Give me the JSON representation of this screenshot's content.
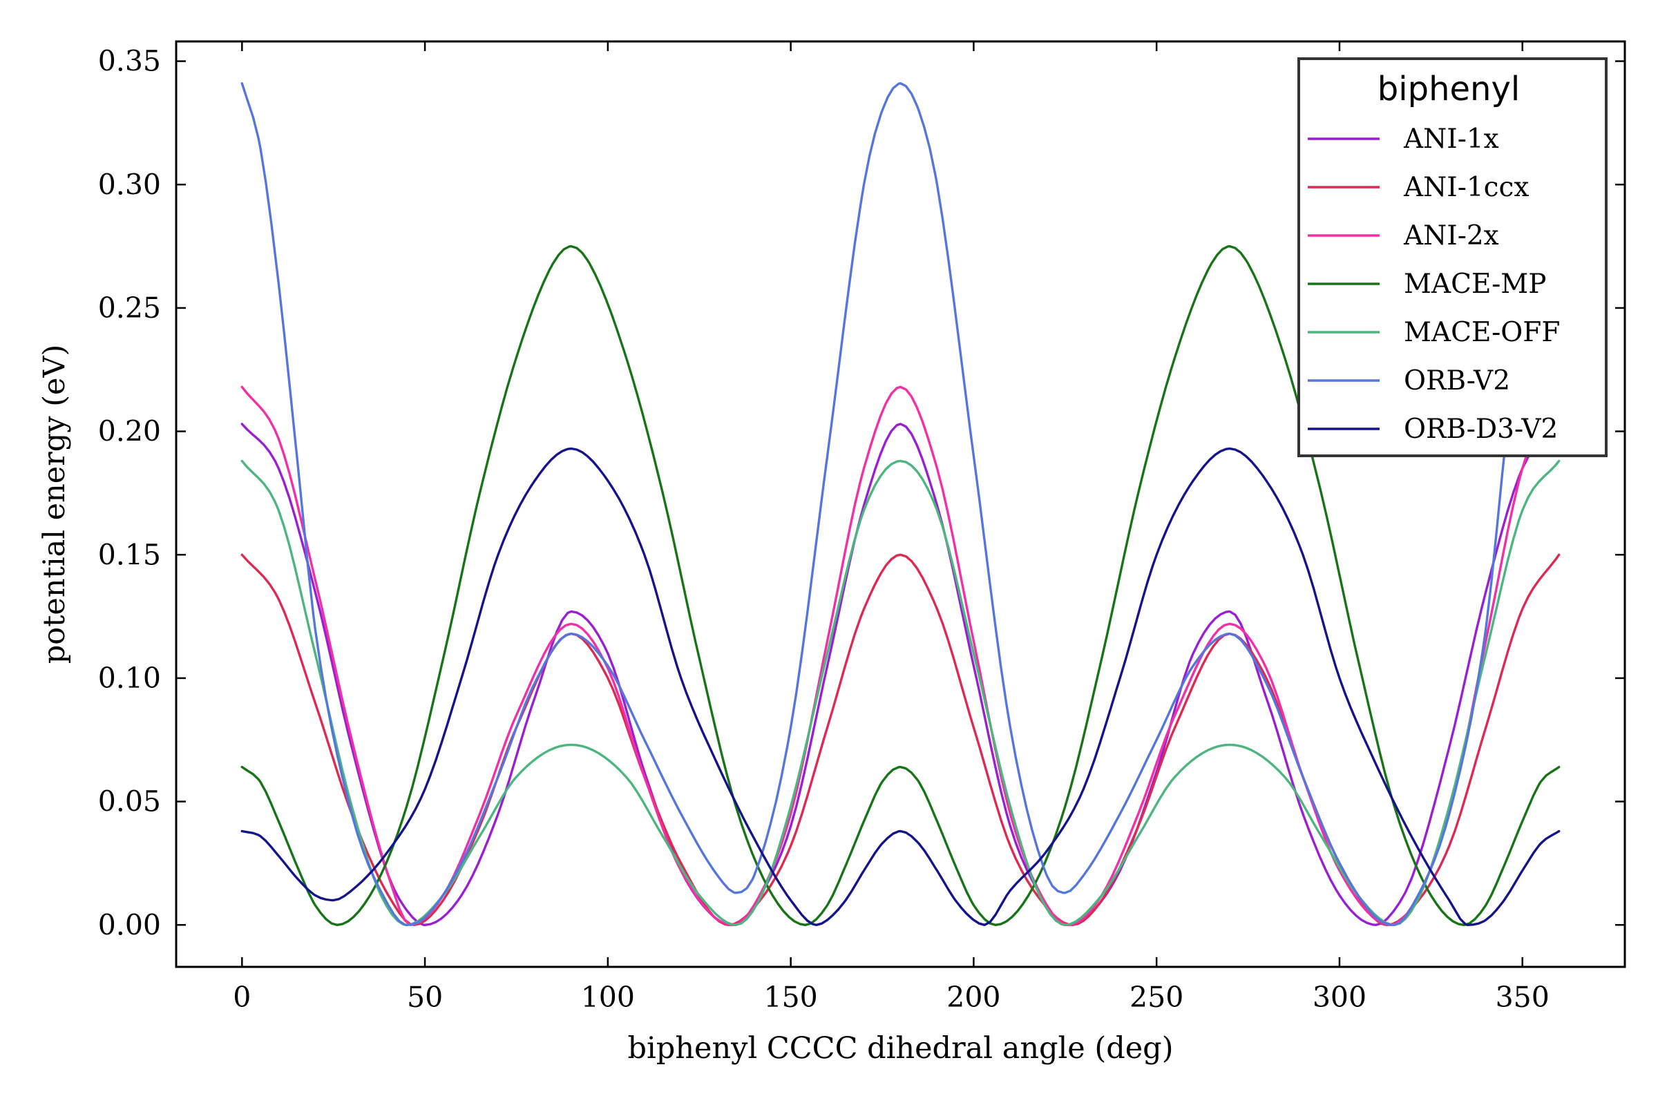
{
  "chart_data": {
    "type": "line",
    "xlabel": "biphenyl CCCC dihedral angle (deg)",
    "ylabel": "potential energy (eV)",
    "xlim": [
      -18,
      378
    ],
    "ylim": [
      -0.017,
      0.358
    ],
    "xticks": [
      0,
      50,
      100,
      150,
      200,
      250,
      300,
      350
    ],
    "xtick_labels": [
      "0",
      "50",
      "100",
      "150",
      "200",
      "250",
      "300",
      "350"
    ],
    "yticks": [
      0.0,
      0.05,
      0.1,
      0.15,
      0.2,
      0.25,
      0.3,
      0.35
    ],
    "ytick_labels": [
      "0.00",
      "0.05",
      "0.10",
      "0.15",
      "0.20",
      "0.25",
      "0.30",
      "0.35"
    ],
    "grid": false,
    "legend": {
      "title": "biphenyl",
      "placement": "top-right"
    },
    "x_range": [
      0,
      360
    ],
    "series": [
      {
        "name": "ANI-1x",
        "color": "#9a1fd3",
        "x": [
          0,
          10,
          20,
          30,
          40,
          45,
          50,
          60,
          70,
          80,
          90,
          100,
          110,
          120,
          130,
          135,
          140,
          150,
          160,
          170,
          180,
          190,
          200,
          210,
          220,
          225,
          230,
          240,
          250,
          260,
          270,
          280,
          290,
          300,
          310,
          315,
          320,
          330,
          340,
          350,
          360
        ],
        "y": [
          0.203,
          0.185,
          0.135,
          0.072,
          0.02,
          0.006,
          0.0,
          0.012,
          0.045,
          0.092,
          0.127,
          0.11,
          0.062,
          0.022,
          0.002,
          0.0,
          0.008,
          0.04,
          0.105,
          0.17,
          0.203,
          0.17,
          0.105,
          0.04,
          0.008,
          0.0,
          0.002,
          0.022,
          0.062,
          0.11,
          0.127,
          0.092,
          0.045,
          0.012,
          0.0,
          0.006,
          0.02,
          0.072,
          0.135,
          0.185,
          0.203
        ]
      },
      {
        "name": "ANI-1ccx",
        "color": "#dc2a52",
        "x": [
          0,
          10,
          20,
          30,
          40,
          47,
          55,
          65,
          75,
          90,
          100,
          110,
          120,
          133,
          140,
          150,
          160,
          170,
          180,
          190,
          200,
          210,
          220,
          227,
          235,
          245,
          255,
          270,
          280,
          290,
          300,
          313,
          320,
          330,
          340,
          350,
          360
        ],
        "y": [
          0.15,
          0.132,
          0.09,
          0.045,
          0.012,
          0.0,
          0.01,
          0.04,
          0.08,
          0.118,
          0.1,
          0.06,
          0.025,
          0.0,
          0.007,
          0.032,
          0.08,
          0.128,
          0.15,
          0.128,
          0.08,
          0.032,
          0.007,
          0.0,
          0.01,
          0.04,
          0.08,
          0.118,
          0.1,
          0.06,
          0.025,
          0.0,
          0.007,
          0.032,
          0.08,
          0.128,
          0.15
        ]
      },
      {
        "name": "ANI-2x",
        "color": "#f12fa6",
        "x": [
          0,
          10,
          20,
          30,
          40,
          46,
          55,
          65,
          75,
          90,
          100,
          110,
          120,
          134,
          140,
          150,
          160,
          170,
          180,
          190,
          200,
          210,
          220,
          226,
          235,
          245,
          255,
          270,
          280,
          290,
          300,
          314,
          320,
          330,
          340,
          350,
          360
        ],
        "y": [
          0.218,
          0.197,
          0.14,
          0.075,
          0.02,
          0.0,
          0.012,
          0.045,
          0.085,
          0.122,
          0.104,
          0.06,
          0.022,
          0.0,
          0.008,
          0.045,
          0.115,
          0.185,
          0.218,
          0.185,
          0.115,
          0.045,
          0.008,
          0.0,
          0.012,
          0.045,
          0.085,
          0.122,
          0.104,
          0.06,
          0.022,
          0.0,
          0.008,
          0.045,
          0.115,
          0.185,
          0.218
        ]
      },
      {
        "name": "MACE-MP",
        "color": "#177417",
        "x": [
          0,
          5,
          10,
          15,
          20,
          26,
          35,
          45,
          55,
          65,
          75,
          85,
          90,
          95,
          105,
          115,
          125,
          135,
          145,
          154,
          160,
          165,
          170,
          175,
          180,
          185,
          190,
          195,
          200,
          206,
          215,
          225,
          235,
          245,
          255,
          265,
          270,
          275,
          285,
          295,
          305,
          315,
          325,
          334,
          340,
          345,
          350,
          355,
          360
        ],
        "y": [
          0.064,
          0.058,
          0.042,
          0.024,
          0.008,
          0.0,
          0.012,
          0.048,
          0.108,
          0.175,
          0.23,
          0.268,
          0.275,
          0.268,
          0.23,
          0.175,
          0.108,
          0.048,
          0.012,
          0.0,
          0.008,
          0.024,
          0.042,
          0.058,
          0.064,
          0.058,
          0.042,
          0.024,
          0.008,
          0.0,
          0.012,
          0.048,
          0.108,
          0.175,
          0.23,
          0.268,
          0.275,
          0.268,
          0.23,
          0.175,
          0.108,
          0.048,
          0.012,
          0.0,
          0.008,
          0.024,
          0.042,
          0.058,
          0.064
        ]
      },
      {
        "name": "MACE-OFF",
        "color": "#4db67f",
        "x": [
          0,
          10,
          20,
          30,
          38,
          45,
          55,
          65,
          75,
          90,
          105,
          115,
          125,
          135,
          142,
          150,
          160,
          170,
          180,
          190,
          200,
          210,
          218,
          225,
          235,
          245,
          255,
          270,
          285,
          295,
          305,
          315,
          322,
          330,
          340,
          350,
          360
        ],
        "y": [
          0.188,
          0.168,
          0.11,
          0.048,
          0.012,
          0.0,
          0.012,
          0.036,
          0.06,
          0.073,
          0.06,
          0.036,
          0.012,
          0.0,
          0.012,
          0.048,
          0.11,
          0.168,
          0.188,
          0.168,
          0.11,
          0.048,
          0.012,
          0.0,
          0.012,
          0.036,
          0.06,
          0.073,
          0.06,
          0.036,
          0.012,
          0.0,
          0.012,
          0.048,
          0.11,
          0.168,
          0.188
        ]
      },
      {
        "name": "ORB-V2",
        "color": "#5577dd",
        "x": [
          0,
          5,
          10,
          15,
          20,
          30,
          40,
          45,
          50,
          60,
          70,
          80,
          90,
          100,
          110,
          120,
          130,
          135,
          140,
          150,
          160,
          170,
          175,
          180,
          185,
          190,
          200,
          210,
          220,
          225,
          230,
          240,
          250,
          260,
          270,
          280,
          290,
          300,
          310,
          315,
          320,
          330,
          340,
          345,
          350,
          355,
          360
        ],
        "y": [
          0.341,
          0.315,
          0.26,
          0.19,
          0.12,
          0.045,
          0.008,
          0.0,
          0.003,
          0.025,
          0.06,
          0.098,
          0.118,
          0.105,
          0.075,
          0.045,
          0.02,
          0.013,
          0.02,
          0.08,
          0.19,
          0.3,
          0.33,
          0.341,
          0.33,
          0.3,
          0.19,
          0.08,
          0.02,
          0.013,
          0.02,
          0.045,
          0.075,
          0.105,
          0.118,
          0.098,
          0.06,
          0.025,
          0.003,
          0.0,
          0.008,
          0.045,
          0.12,
          0.19,
          0.26,
          0.315,
          0.341
        ]
      },
      {
        "name": "ORB-D3-V2",
        "color": "#14148c",
        "x": [
          0,
          5,
          10,
          15,
          20,
          25,
          30,
          40,
          50,
          60,
          70,
          80,
          90,
          100,
          110,
          120,
          130,
          140,
          150,
          157,
          160,
          165,
          170,
          175,
          180,
          185,
          190,
          195,
          200,
          203,
          210,
          220,
          230,
          240,
          250,
          260,
          270,
          280,
          290,
          300,
          310,
          320,
          330,
          335,
          340,
          345,
          350,
          355,
          360
        ],
        "y": [
          0.038,
          0.036,
          0.028,
          0.019,
          0.012,
          0.01,
          0.014,
          0.03,
          0.055,
          0.1,
          0.15,
          0.18,
          0.193,
          0.18,
          0.15,
          0.1,
          0.065,
          0.035,
          0.01,
          0.0,
          0.002,
          0.01,
          0.022,
          0.033,
          0.038,
          0.033,
          0.022,
          0.01,
          0.002,
          0.0,
          0.014,
          0.03,
          0.055,
          0.1,
          0.15,
          0.18,
          0.193,
          0.18,
          0.15,
          0.1,
          0.065,
          0.035,
          0.01,
          0.0,
          0.002,
          0.01,
          0.022,
          0.033,
          0.038
        ]
      }
    ]
  }
}
